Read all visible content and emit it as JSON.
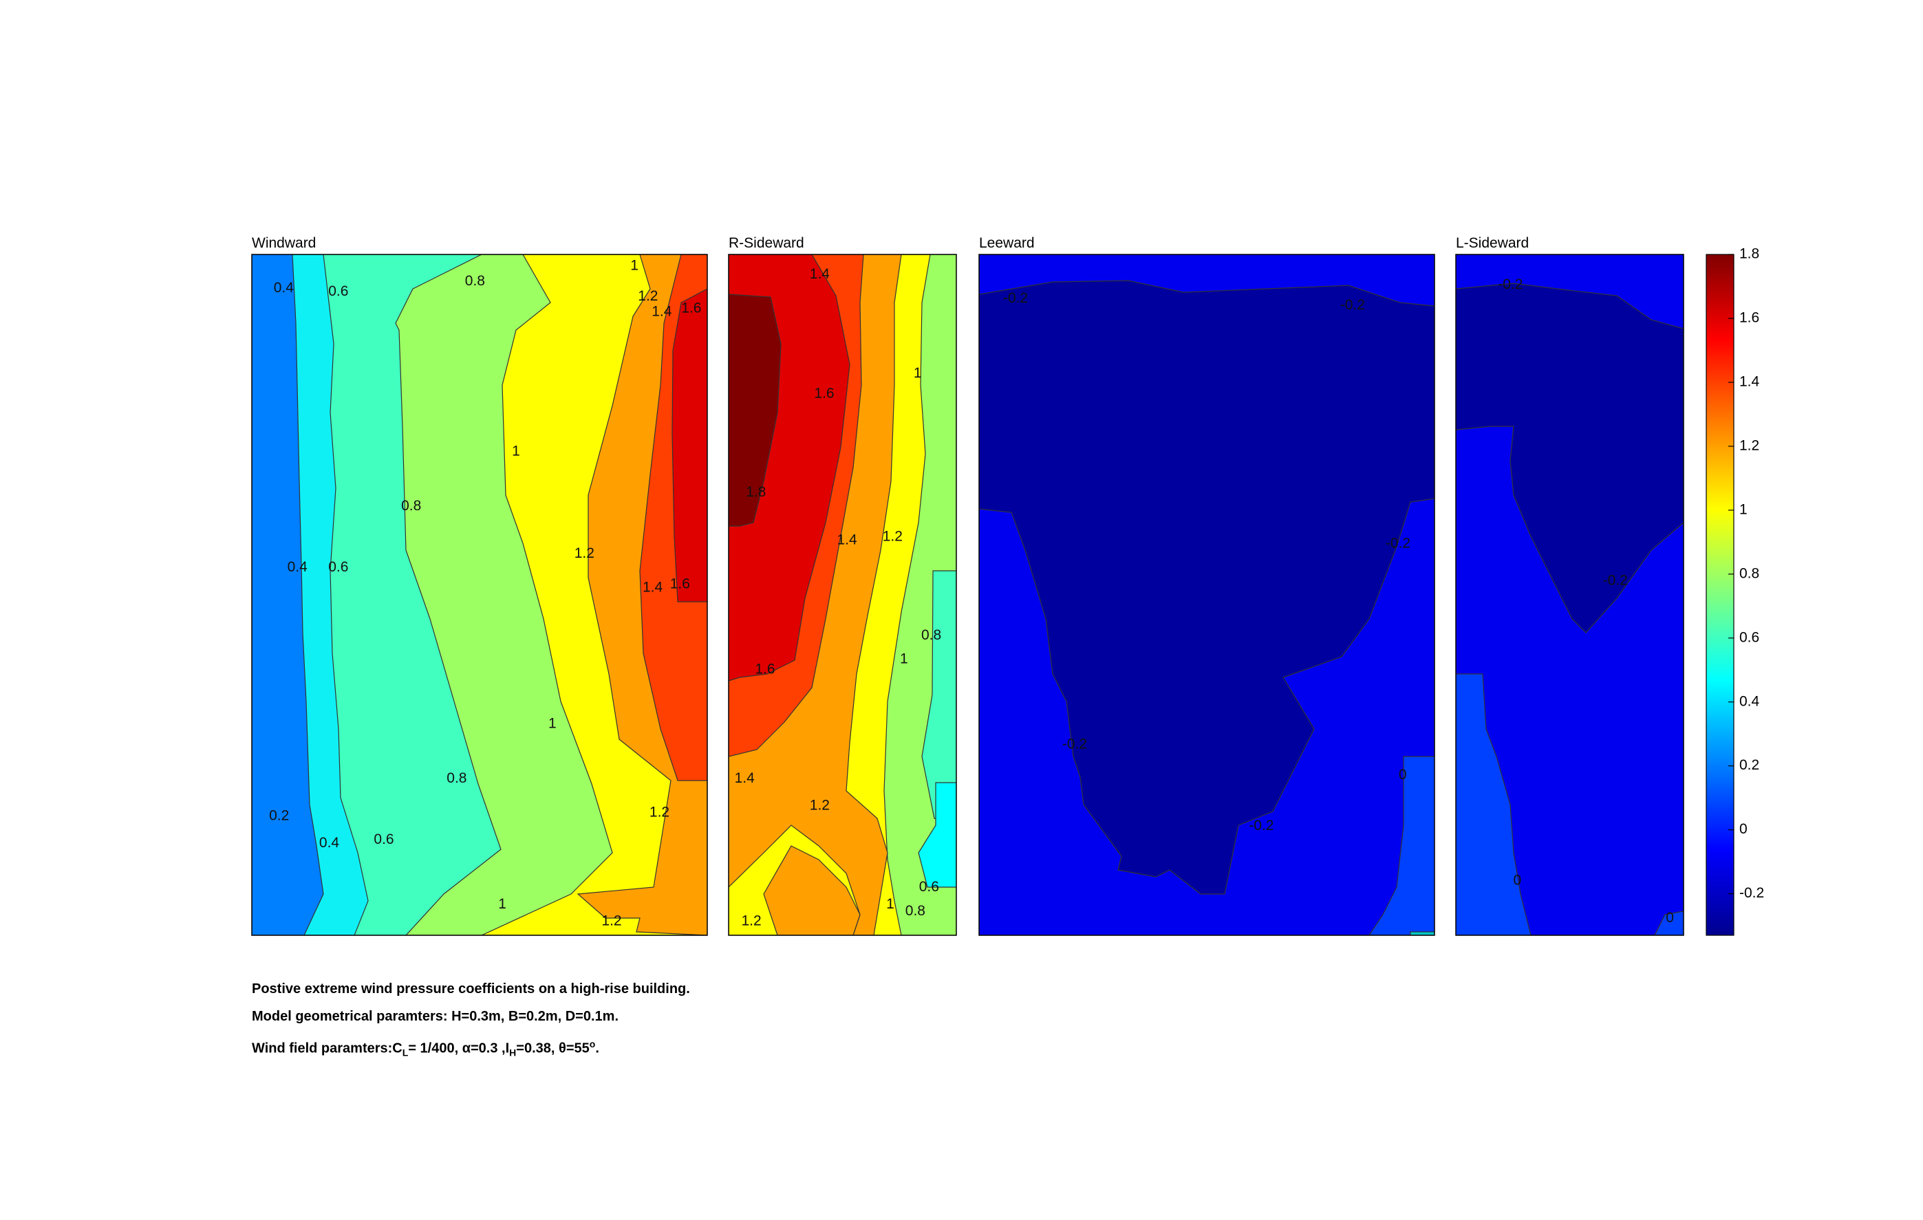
{
  "chart_data": {
    "type": "heatmap",
    "plot_kind": "filled contour",
    "colormap": "jet",
    "panels": [
      {
        "title": "Windward",
        "contour_labels": [
          {
            "text": "0.4",
            "u": 0.07,
            "v": 0.05
          },
          {
            "text": "0.6",
            "u": 0.19,
            "v": 0.055
          },
          {
            "text": "0.8",
            "u": 0.49,
            "v": 0.04
          },
          {
            "text": "1",
            "u": 0.84,
            "v": 0.017
          },
          {
            "text": "1.2",
            "u": 0.87,
            "v": 0.062
          },
          {
            "text": "1.4",
            "u": 0.9,
            "v": 0.085
          },
          {
            "text": "1.6",
            "u": 0.965,
            "v": 0.08
          },
          {
            "text": "1",
            "u": 0.58,
            "v": 0.29
          },
          {
            "text": "0.8",
            "u": 0.35,
            "v": 0.37
          },
          {
            "text": "0.4",
            "u": 0.1,
            "v": 0.46
          },
          {
            "text": "0.6",
            "u": 0.19,
            "v": 0.46
          },
          {
            "text": "1.2",
            "u": 0.73,
            "v": 0.44
          },
          {
            "text": "1.4",
            "u": 0.88,
            "v": 0.49
          },
          {
            "text": "1.6",
            "u": 0.94,
            "v": 0.485
          },
          {
            "text": "1",
            "u": 0.66,
            "v": 0.69
          },
          {
            "text": "0.8",
            "u": 0.45,
            "v": 0.77
          },
          {
            "text": "1.2",
            "u": 0.895,
            "v": 0.82
          },
          {
            "text": "0.2",
            "u": 0.06,
            "v": 0.825
          },
          {
            "text": "0.4",
            "u": 0.17,
            "v": 0.865
          },
          {
            "text": "0.6",
            "u": 0.29,
            "v": 0.86
          },
          {
            "text": "1",
            "u": 0.55,
            "v": 0.955
          },
          {
            "text": "1.2",
            "u": 0.79,
            "v": 0.98
          }
        ]
      },
      {
        "title": "R-Sideward",
        "contour_labels": [
          {
            "text": "1.4",
            "u": 0.4,
            "v": 0.03
          },
          {
            "text": "1",
            "u": 0.83,
            "v": 0.175
          },
          {
            "text": "1.6",
            "u": 0.42,
            "v": 0.205
          },
          {
            "text": "1.8",
            "u": 0.12,
            "v": 0.35
          },
          {
            "text": "1.4",
            "u": 0.52,
            "v": 0.42
          },
          {
            "text": "1.2",
            "u": 0.72,
            "v": 0.415
          },
          {
            "text": "1",
            "u": 0.77,
            "v": 0.595
          },
          {
            "text": "0.8",
            "u": 0.89,
            "v": 0.56
          },
          {
            "text": "1.6",
            "u": 0.16,
            "v": 0.61
          },
          {
            "text": "1.4",
            "u": 0.07,
            "v": 0.77
          },
          {
            "text": "1.2",
            "u": 0.4,
            "v": 0.81
          },
          {
            "text": "0.6",
            "u": 0.88,
            "v": 0.93
          },
          {
            "text": "1",
            "u": 0.71,
            "v": 0.955
          },
          {
            "text": "0.8",
            "u": 0.82,
            "v": 0.965
          },
          {
            "text": "1.2",
            "u": 0.1,
            "v": 0.98
          }
        ]
      },
      {
        "title": "Leeward",
        "contour_labels": [
          {
            "text": "-0.2",
            "u": 0.08,
            "v": 0.065
          },
          {
            "text": "-0.2",
            "u": 0.82,
            "v": 0.075
          },
          {
            "text": "-0.2",
            "u": 0.92,
            "v": 0.425
          },
          {
            "text": "-0.2",
            "u": 0.21,
            "v": 0.72
          },
          {
            "text": "0",
            "u": 0.93,
            "v": 0.765
          },
          {
            "text": "-0.2",
            "u": 0.62,
            "v": 0.84
          }
        ]
      },
      {
        "title": "L-Sideward",
        "contour_labels": [
          {
            "text": "-0.2",
            "u": 0.24,
            "v": 0.045
          },
          {
            "text": "-0.2",
            "u": 0.7,
            "v": 0.48
          },
          {
            "text": "0",
            "u": 0.27,
            "v": 0.92
          },
          {
            "text": "0",
            "u": 0.94,
            "v": 0.975
          }
        ]
      }
    ],
    "colorbar": {
      "range": [
        -0.33,
        1.8
      ],
      "ticks": [
        "1.8",
        "1.6",
        "1.4",
        "1.2",
        "1",
        "0.8",
        "0.6",
        "0.4",
        "0.2",
        "0",
        "-0.2"
      ]
    }
  },
  "captions": {
    "line1": "Postive extreme  wind pressure coefficients on a high-rise building.",
    "line2": "Model geometrical paramters: H=0.3m, B=0.2m, D=0.1m.",
    "line3_prefix": "Wind field paramters:C",
    "line3_sub1": "L",
    "line3_mid1": "= 1/400, α=0.3 ,I",
    "line3_sub2": "H",
    "line3_mid2": "=0.38, θ=55",
    "line3_sup": "o",
    "line3_end": "."
  }
}
